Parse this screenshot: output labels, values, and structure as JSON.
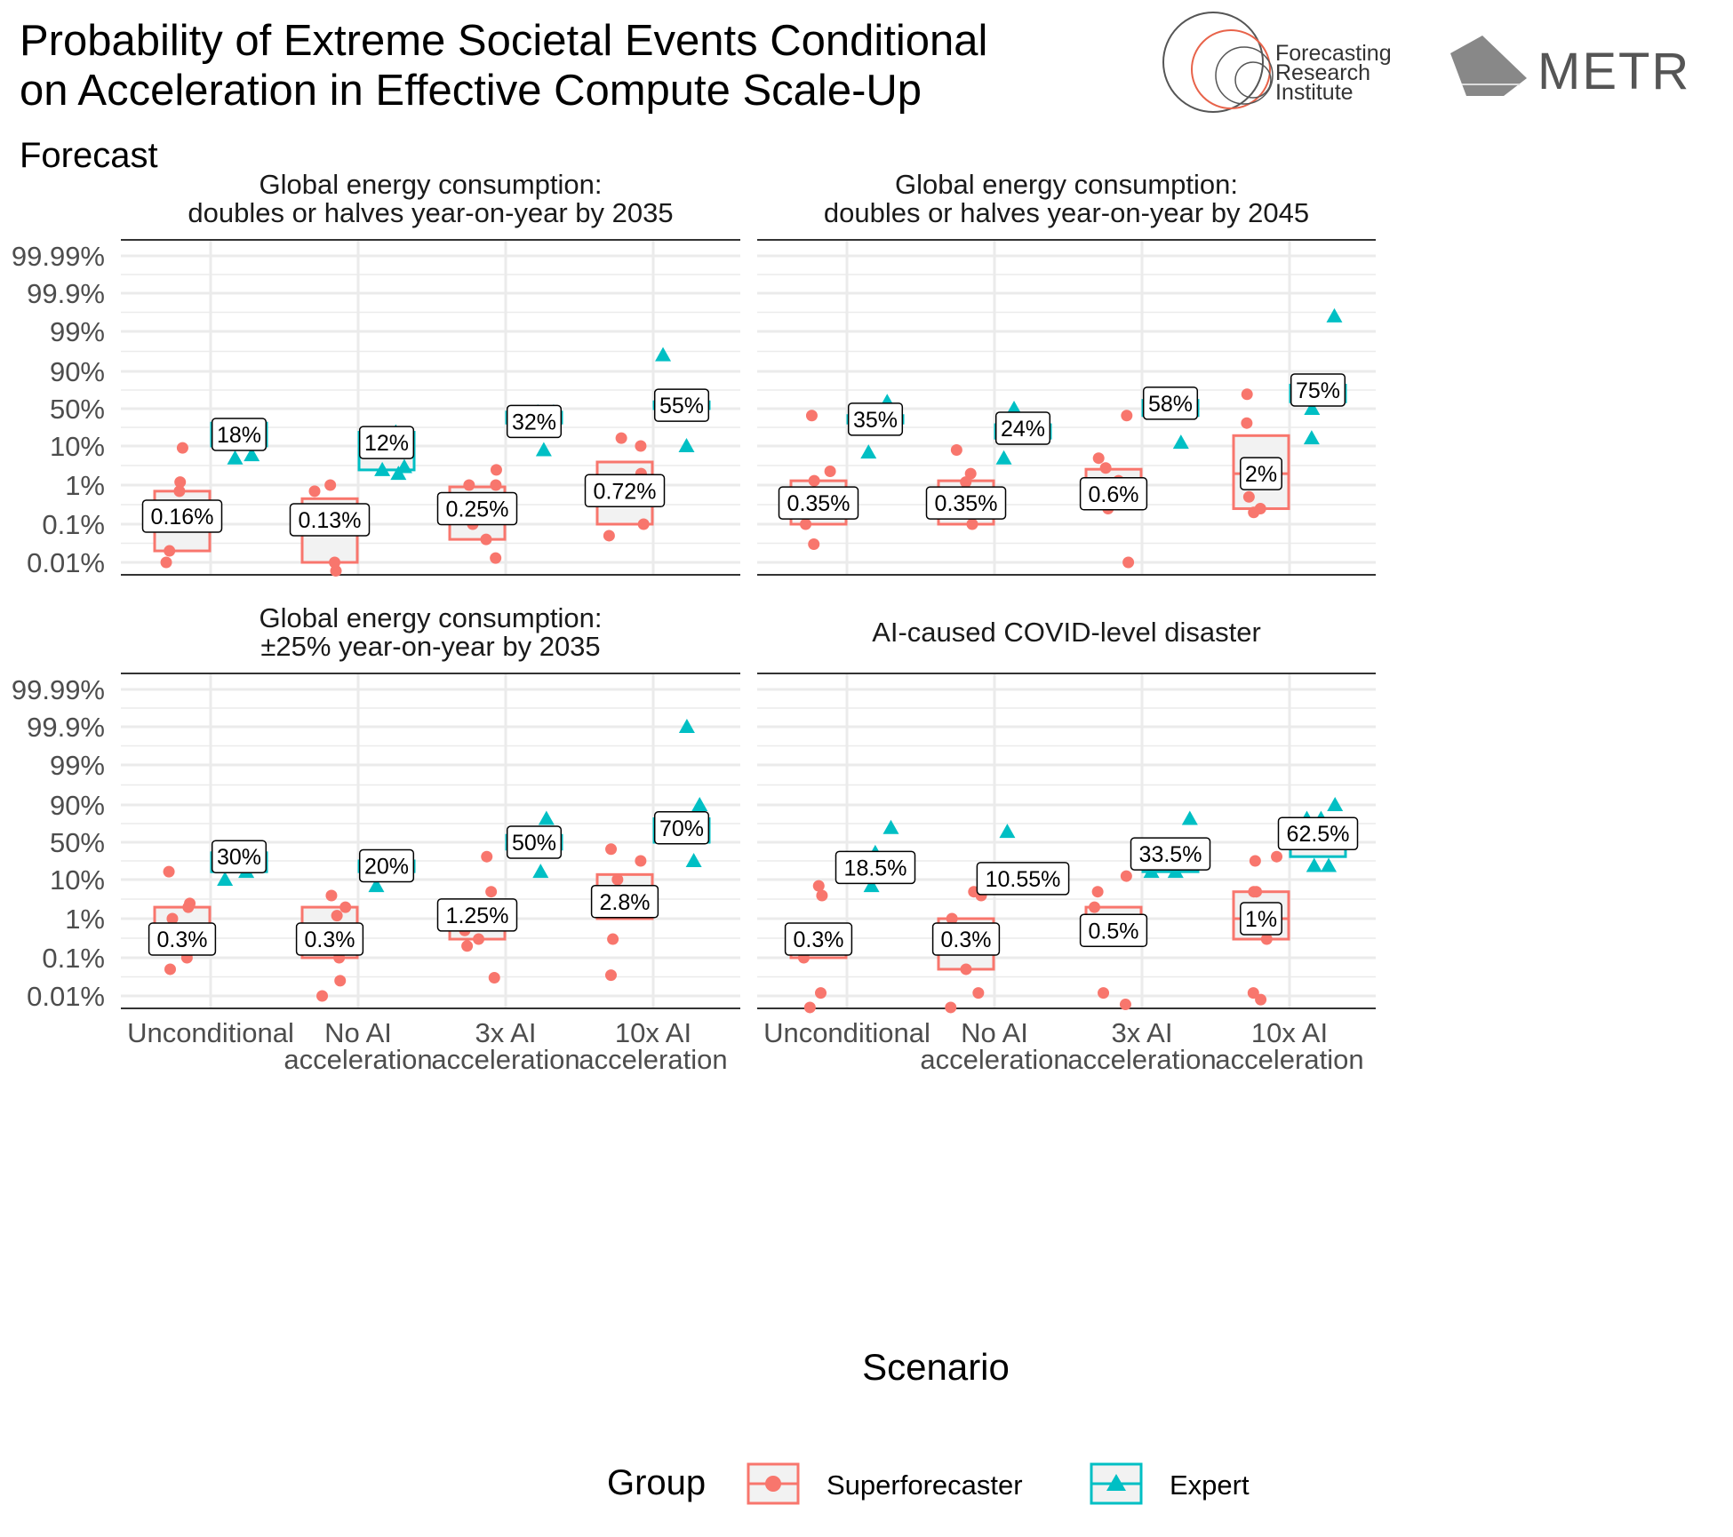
{
  "header": {
    "title_line1": "Probability of Extreme Societal Events Conditional",
    "title_line2": "on Acceleration in Effective Compute Scale-Up",
    "subtitle": "Forecast"
  },
  "logos": {
    "fri_line1": "Forecasting",
    "fri_line2": "Research",
    "fri_line3": "Institute",
    "metr": "METR"
  },
  "colors": {
    "superforecaster": "#F8766D",
    "expert": "#00BFC4",
    "box_fill": "#F2F2F2",
    "grid": "#EBEBEB"
  },
  "chart_data": {
    "type": "box+jitter",
    "y_scale": "logit (probability)",
    "y_ticks": [
      "0.01%",
      "0.1%",
      "1%",
      "10%",
      "50%",
      "90%",
      "99%",
      "99.9%",
      "99.99%"
    ],
    "categories": [
      "Unconditional",
      "No AI acceleration",
      "3x AI acceleration",
      "10x AI acceleration"
    ],
    "category_lines": [
      [
        "Unconditional"
      ],
      [
        "No AI",
        "acceleration"
      ],
      [
        "3x AI",
        "acceleration"
      ],
      [
        "10x AI",
        "acceleration"
      ]
    ],
    "xlabel": "Scenario",
    "legend": {
      "title": "Group",
      "items": [
        "Superforecaster",
        "Expert"
      ]
    },
    "panels": [
      {
        "title": [
          "Global energy consumption:",
          "doubles or halves year-on-year by 2035"
        ],
        "superforecaster": [
          {
            "median_label": "0.16%",
            "median": 0.0016,
            "q1": 0.0002,
            "q3": 0.007,
            "points": [
              9,
              1.2,
              0.7,
              0.02,
              0.01
            ]
          },
          {
            "median_label": "0.13%",
            "median": 0.0013,
            "q1": 0.0001,
            "q3": 0.0045,
            "points": [
              1,
              0.7,
              0.01,
              0.006
            ]
          },
          {
            "median_label": "0.25%",
            "median": 0.0025,
            "q1": 0.0004,
            "q3": 0.009,
            "points": [
              2.5,
              1,
              1,
              0.1,
              0.04,
              0.013
            ]
          },
          {
            "median_label": "0.72%",
            "median": 0.0072,
            "q1": 0.001,
            "q3": 0.04,
            "points": [
              15,
              10,
              2,
              0.1,
              0.05
            ]
          }
        ],
        "expert": [
          {
            "median_label": "18%",
            "median": 0.18,
            "q1": 0.1,
            "q3": 0.3,
            "points": [
              25,
              25,
              6,
              5
            ]
          },
          {
            "median_label": "12%",
            "median": 0.12,
            "q1": 0.025,
            "q3": 0.2,
            "points": [
              20,
              3,
              2.5,
              2
            ]
          },
          {
            "median_label": "32%",
            "median": 0.32,
            "q1": 0.3,
            "q3": 0.45,
            "points": [
              45,
              45,
              8
            ]
          },
          {
            "median_label": "55%",
            "median": 0.55,
            "q1": 0.5,
            "q3": 0.6,
            "points": [
              96,
              10
            ]
          }
        ]
      },
      {
        "title": [
          "Global energy consumption:",
          "doubles or halves year-on-year by 2045"
        ],
        "superforecaster": [
          {
            "median_label": "0.35%",
            "median": 0.0035,
            "q1": 0.001,
            "q3": 0.013,
            "points": [
              40,
              2.3,
              1.3,
              0.1,
              0.03
            ]
          },
          {
            "median_label": "0.35%",
            "median": 0.0035,
            "q1": 0.001,
            "q3": 0.013,
            "points": [
              8,
              2,
              1.2,
              0.1
            ]
          },
          {
            "median_label": "0.6%",
            "median": 0.006,
            "q1": 0.0025,
            "q3": 0.026,
            "points": [
              40,
              5,
              2.8,
              1.3,
              0.25,
              0.01
            ]
          },
          {
            "median_label": "2%",
            "median": 0.02,
            "q1": 0.0025,
            "q3": 0.17,
            "points": [
              70,
              30,
              2,
              0.5,
              0.25,
              0.2
            ]
          }
        ],
        "expert": [
          {
            "median_label": "35%",
            "median": 0.35,
            "q1": 0.3,
            "q3": 0.4,
            "points": [
              60,
              30,
              7
            ]
          },
          {
            "median_label": "24%",
            "median": 0.24,
            "q1": 0.15,
            "q3": 0.28,
            "points": [
              50,
              15,
              5
            ]
          },
          {
            "median_label": "58%",
            "median": 0.58,
            "q1": 0.4,
            "q3": 0.62,
            "points": [
              12
            ]
          },
          {
            "median_label": "75%",
            "median": 0.75,
            "q1": 0.6,
            "q3": 0.8,
            "points": [
              99.6,
              80,
              50,
              15
            ]
          }
        ]
      },
      {
        "title": [
          "Global energy consumption:",
          "±25% year-on-year by 2035"
        ],
        "superforecaster": [
          {
            "median_label": "0.3%",
            "median": 0.003,
            "q1": 0.0013,
            "q3": 0.02,
            "points": [
              15,
              2.5,
              2,
              1,
              0.3,
              0.1,
              0.05
            ]
          },
          {
            "median_label": "0.3%",
            "median": 0.003,
            "q1": 0.001,
            "q3": 0.02,
            "points": [
              4,
              2,
              1.2,
              0.1,
              0.025,
              0.01
            ]
          },
          {
            "median_label": "1.25%",
            "median": 0.0125,
            "q1": 0.003,
            "q3": 0.0125,
            "points": [
              30,
              5,
              0.5,
              0.3,
              0.2,
              0.03
            ]
          },
          {
            "median_label": "2.8%",
            "median": 0.028,
            "q1": 0.01,
            "q3": 0.13,
            "points": [
              40,
              25,
              10,
              5,
              2.8,
              0.3,
              0.035
            ]
          }
        ],
        "expert": [
          {
            "median_label": "30%",
            "median": 0.3,
            "q1": 0.15,
            "q3": 0.35,
            "points": [
              15,
              10
            ]
          },
          {
            "median_label": "20%",
            "median": 0.2,
            "q1": 0.15,
            "q3": 0.25,
            "points": [
              7
            ]
          },
          {
            "median_label": "50%",
            "median": 0.5,
            "q1": 0.4,
            "q3": 0.6,
            "points": [
              80,
              15
            ]
          },
          {
            "median_label": "70%",
            "median": 0.7,
            "q1": 0.5,
            "q3": 0.8,
            "points": [
              99.9,
              90,
              25
            ]
          }
        ]
      },
      {
        "title": [
          "AI-caused COVID-level disaster"
        ],
        "superforecaster": [
          {
            "median_label": "0.3%",
            "median": 0.003,
            "q1": 0.001,
            "q3": 0.003,
            "points": [
              7,
              4,
              0.1,
              0.012,
              0.005
            ]
          },
          {
            "median_label": "0.3%",
            "median": 0.003,
            "q1": 0.0005,
            "q3": 0.01,
            "points": [
              5,
              4,
              1,
              0.05,
              0.012,
              0.005
            ]
          },
          {
            "median_label": "0.5%",
            "median": 0.005,
            "q1": 0.005,
            "q3": 0.02,
            "points": [
              12,
              5,
              2,
              0.012,
              0.006
            ]
          },
          {
            "median_label": "1%",
            "median": 0.01,
            "q1": 0.003,
            "q3": 0.05,
            "points": [
              30,
              25,
              5,
              5,
              0.3,
              0.012,
              0.008
            ]
          }
        ],
        "expert": [
          {
            "median_label": "18.5%",
            "median": 0.185,
            "q1": 0.1,
            "q3": 0.3,
            "points": [
              70,
              35,
              7
            ]
          },
          {
            "median_label": "10.55%",
            "median": 0.1055,
            "q1": 0.05,
            "q3": 0.12,
            "points": [
              65
            ]
          },
          {
            "median_label": "33.5%",
            "median": 0.335,
            "q1": 0.15,
            "q3": 0.4,
            "points": [
              80,
              40,
              15,
              15
            ]
          },
          {
            "median_label": "62.5%",
            "median": 0.625,
            "q1": 0.3,
            "q3": 0.8,
            "points": [
              90,
              80,
              80,
              20,
              20
            ]
          }
        ]
      }
    ]
  }
}
